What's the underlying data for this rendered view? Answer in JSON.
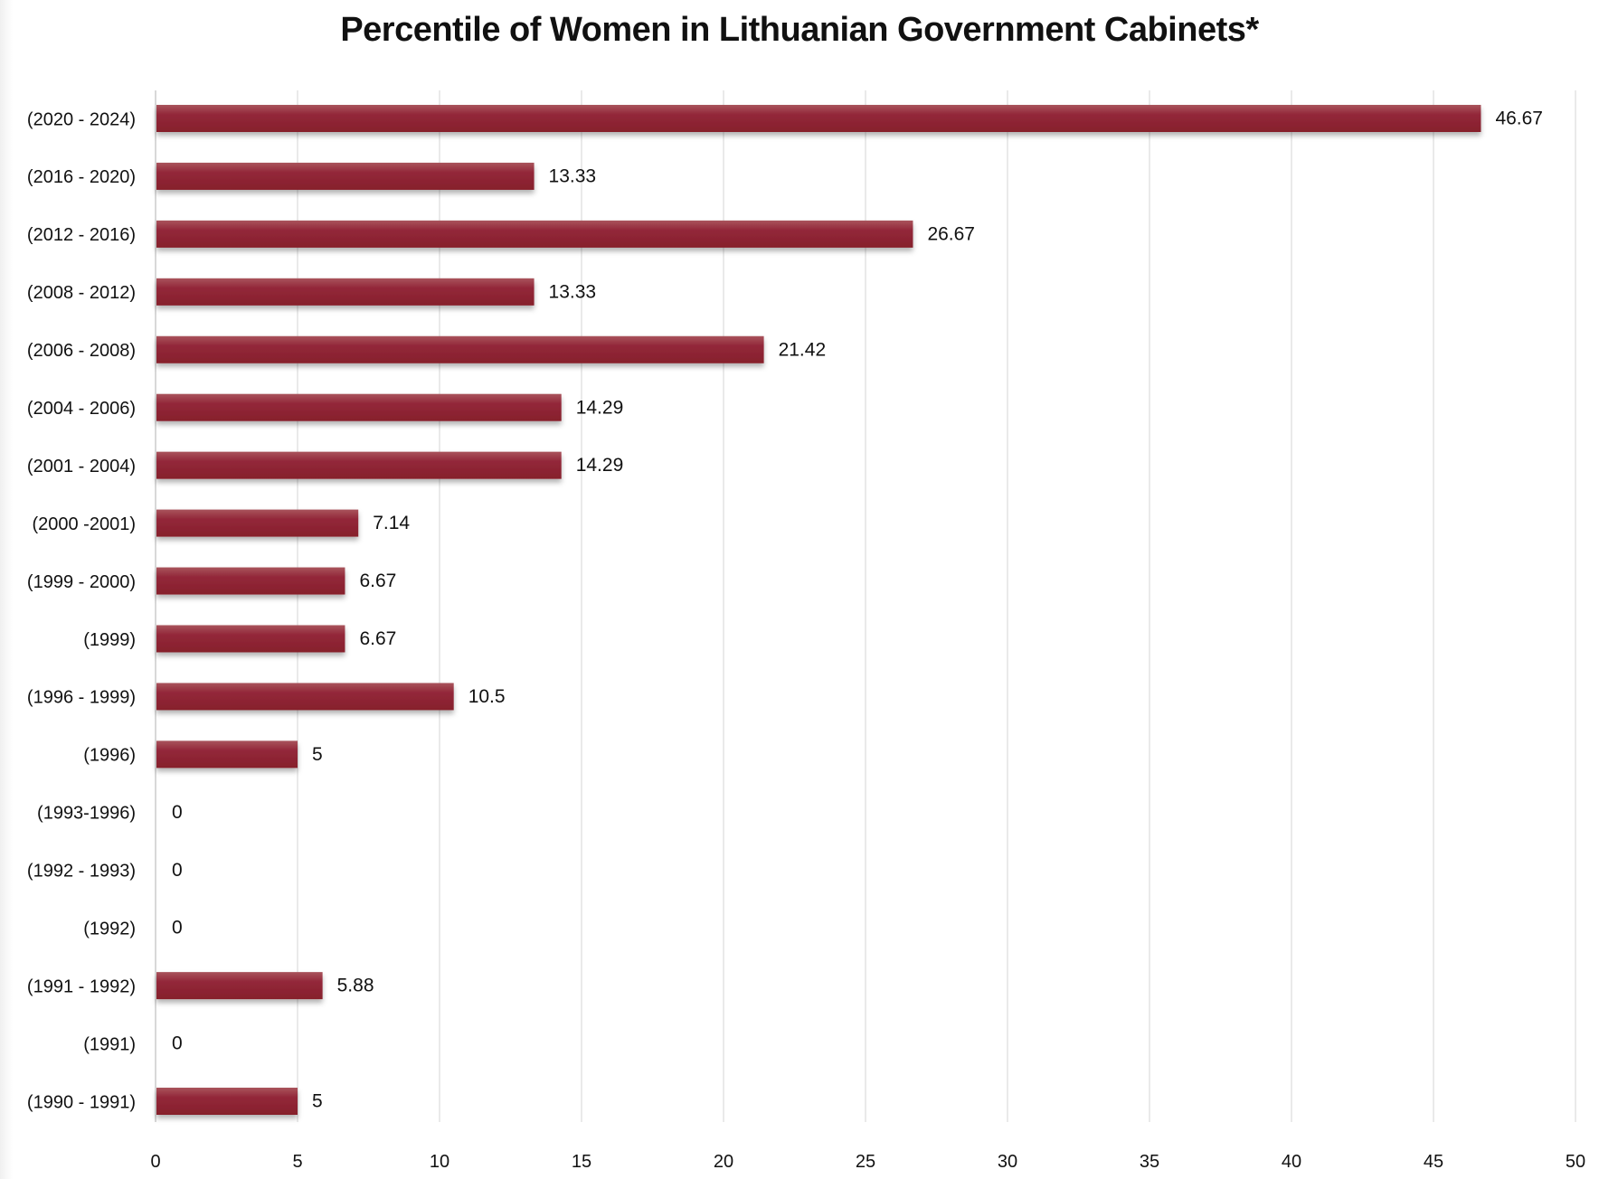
{
  "chart_data": {
    "type": "bar",
    "orientation": "horizontal",
    "title": "Percentile of Women in Lithuanian Government Cabinets*",
    "xlabel": "",
    "ylabel": "",
    "xlim": [
      0,
      50
    ],
    "xticks": [
      "0",
      "5",
      "10",
      "15",
      "20",
      "25",
      "30",
      "35",
      "40",
      "45",
      "50"
    ],
    "grid": true,
    "legend": "none",
    "bar_color": "#8e2430",
    "categories": [
      "(2020 - 2024)",
      "(2016 - 2020)",
      "(2012 - 2016)",
      "(2008 - 2012)",
      "(2006 - 2008)",
      "(2004 - 2006)",
      "(2001 - 2004)",
      "(2000  -2001)",
      "(1999 - 2000)",
      "(1999)",
      "(1996 - 1999)",
      "(1996)",
      "(1993-1996)",
      "(1992 - 1993)",
      "(1992)",
      "(1991 - 1992)",
      "(1991)",
      "(1990 - 1991)"
    ],
    "values": [
      46.67,
      13.33,
      26.67,
      13.33,
      21.42,
      14.29,
      14.29,
      7.14,
      6.67,
      6.67,
      10.5,
      5,
      0,
      0,
      0,
      5.88,
      0,
      5
    ],
    "value_labels": [
      "46.67",
      "13.33",
      "26.67",
      "13.33",
      "21.42",
      "14.29",
      "14.29",
      "7.14",
      "6.67",
      "6.67",
      "10.5",
      "5",
      "0",
      "0",
      "0",
      "5.88",
      "0",
      "5"
    ]
  }
}
